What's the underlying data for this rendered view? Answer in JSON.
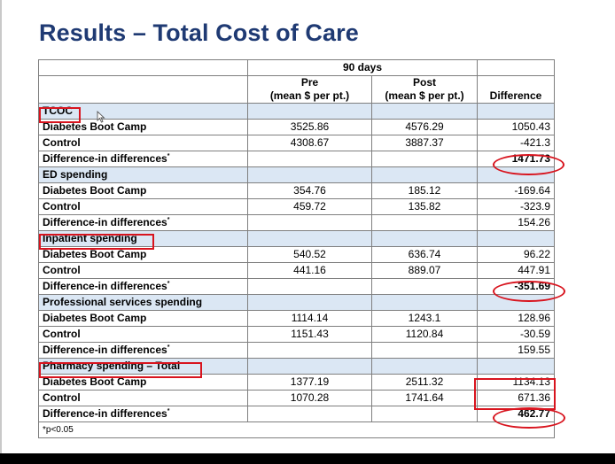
{
  "title": "Results – Total Cost of Care",
  "table": {
    "period_header": "90 days",
    "col_pre": [
      "Pre",
      "(mean $ per pt.)"
    ],
    "col_post": [
      "Post",
      "(mean $ per pt.)"
    ],
    "col_diff": "Difference",
    "sections": [
      {
        "name": "TCOC",
        "rows": [
          {
            "label": "Diabetes Boot Camp",
            "pre": "3525.86",
            "post": "4576.29",
            "diff": "1050.43"
          },
          {
            "label": "Control",
            "pre": "4308.67",
            "post": "3887.37",
            "diff": "-421.3"
          },
          {
            "label": "Difference-in differences",
            "pre": "",
            "post": "",
            "diff": "1471.73"
          }
        ]
      },
      {
        "name": "ED spending",
        "rows": [
          {
            "label": "Diabetes Boot Camp",
            "pre": "354.76",
            "post": "185.12",
            "diff": "-169.64"
          },
          {
            "label": "Control",
            "pre": "459.72",
            "post": "135.82",
            "diff": "-323.9"
          },
          {
            "label": "Difference-in differences",
            "pre": "",
            "post": "",
            "diff": "154.26"
          }
        ]
      },
      {
        "name": "Inpatient spending",
        "rows": [
          {
            "label": "Diabetes Boot Camp",
            "pre": "540.52",
            "post": "636.74",
            "diff": "96.22"
          },
          {
            "label": "Control",
            "pre": "441.16",
            "post": "889.07",
            "diff": "447.91"
          },
          {
            "label": "Difference-in differences",
            "pre": "",
            "post": "",
            "diff": "-351.69"
          }
        ]
      },
      {
        "name": "Professional services spending",
        "rows": [
          {
            "label": "Diabetes Boot Camp",
            "pre": "1114.14",
            "post": "1243.1",
            "diff": "128.96"
          },
          {
            "label": "Control",
            "pre": "1151.43",
            "post": "1120.84",
            "diff": "-30.59"
          },
          {
            "label": "Difference-in differences",
            "pre": "",
            "post": "",
            "diff": "159.55"
          }
        ]
      },
      {
        "name": "Pharmacy spending – Total",
        "rows": [
          {
            "label": "Diabetes Boot Camp",
            "pre": "1377.19",
            "post": "2511.32",
            "diff": "1134.13"
          },
          {
            "label": "Control",
            "pre": "1070.28",
            "post": "1741.64",
            "diff": "671.36"
          },
          {
            "label": "Difference-in differences",
            "pre": "",
            "post": "",
            "diff": "462.77"
          }
        ]
      }
    ],
    "footnote": "*p<0.05"
  },
  "colors": {
    "title": "#1f3a73",
    "section_fill": "#dbe7f4",
    "annotation_red": "#d8141e"
  }
}
